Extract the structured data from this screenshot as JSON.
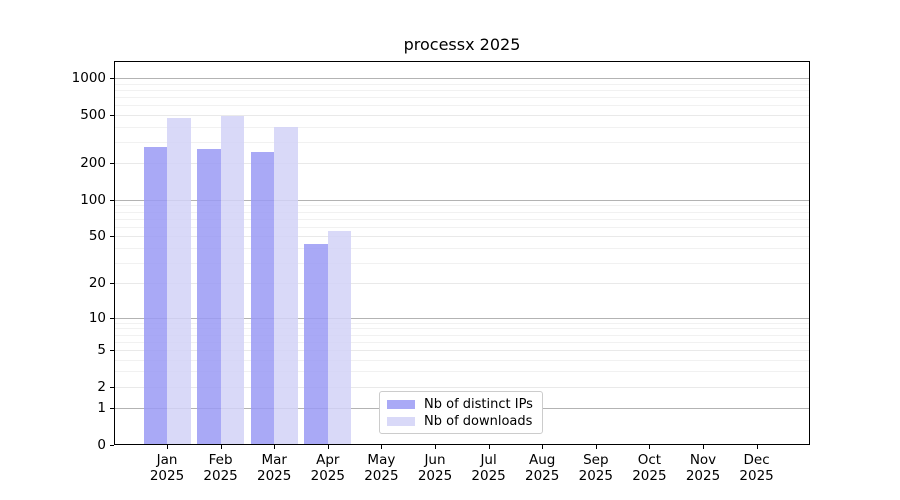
{
  "title": "processx 2025",
  "chart_data": {
    "type": "bar",
    "title": "processx 2025",
    "categories": [
      "Jan 2025",
      "Feb 2025",
      "Mar 2025",
      "Apr 2025",
      "May 2025",
      "Jun 2025",
      "Jul 2025",
      "Aug 2025",
      "Sep 2025",
      "Oct 2025",
      "Nov 2025",
      "Dec 2025"
    ],
    "series": [
      {
        "name": "Nb of distinct IPs",
        "color": "#9a9af4",
        "values": [
          275,
          265,
          246,
          43,
          null,
          null,
          null,
          null,
          null,
          null,
          null,
          null
        ]
      },
      {
        "name": "Nb of downloads",
        "color": "#d2d2f7",
        "values": [
          470,
          488,
          397,
          55,
          null,
          null,
          null,
          null,
          null,
          null,
          null,
          null
        ]
      }
    ],
    "xlabel": "",
    "ylabel": "",
    "yscale": "log1p",
    "yticks": [
      0,
      1,
      2,
      5,
      10,
      20,
      50,
      100,
      200,
      500,
      1000
    ],
    "minor_yticks": [
      3,
      4,
      6,
      7,
      8,
      9,
      30,
      40,
      60,
      70,
      80,
      90,
      300,
      400,
      600,
      700,
      800,
      900
    ],
    "ylim": [
      0,
      1380
    ],
    "grid": "both",
    "legend_position": "inside-bottom-center"
  }
}
